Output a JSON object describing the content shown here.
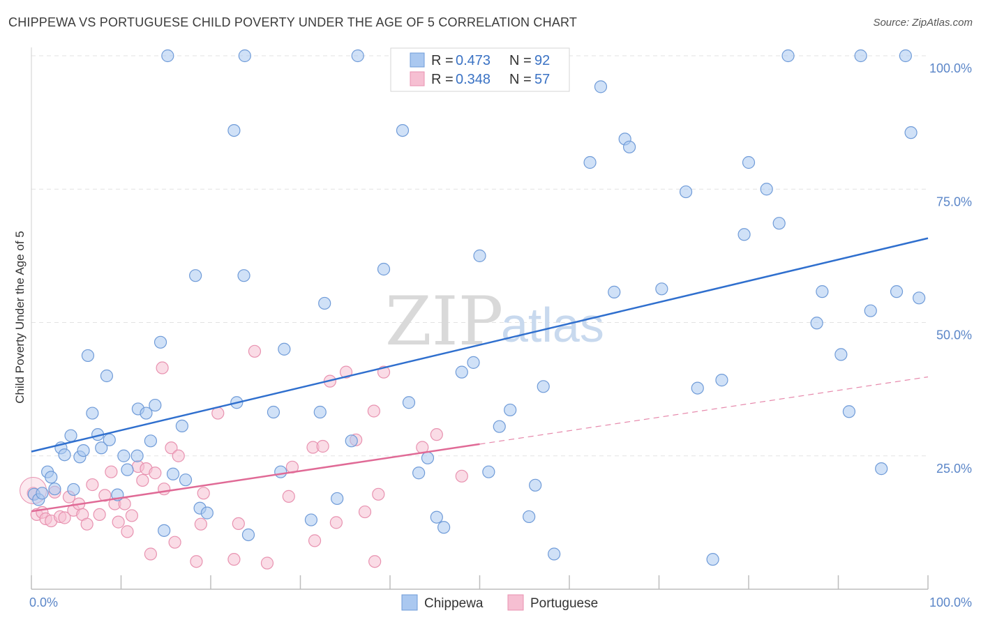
{
  "title": "CHIPPEWA VS PORTUGUESE CHILD POVERTY UNDER THE AGE OF 5 CORRELATION CHART",
  "source": "Source: ZipAtlas.com",
  "watermark": {
    "zip": "ZIP",
    "atlas": "atlas"
  },
  "colors": {
    "chippewa_fill": "#aac8f0",
    "chippewa_stroke": "#6f9bd8",
    "chippewa_line": "#2f6fce",
    "portuguese_fill": "#f6bfd2",
    "portuguese_stroke": "#e892b0",
    "portuguese_line": "#e06a96",
    "grid": "#e2e2e2",
    "tick_text": "#5b86c8"
  },
  "legend": {
    "rows": [
      {
        "r_label": "R =",
        "r_value": "0.473",
        "n_label": "N =",
        "n_value": "92"
      },
      {
        "r_label": "R =",
        "r_value": "0.348",
        "n_label": "N =",
        "n_value": "57"
      }
    ]
  },
  "chart_data": {
    "type": "scatter",
    "title": "CHIPPEWA VS PORTUGUESE CHILD POVERTY UNDER THE AGE OF 5 CORRELATION CHART",
    "xlabel": "",
    "ylabel": "Child Poverty Under the Age of 5",
    "xlim": [
      0,
      100
    ],
    "ylim": [
      0,
      100
    ],
    "x_tick_labels": [
      "0.0%",
      "100.0%"
    ],
    "y_ticks": [
      25,
      50,
      75,
      100
    ],
    "y_tick_labels": [
      "25.0%",
      "50.0%",
      "75.0%",
      "100.0%"
    ],
    "grid": true,
    "legend_position": "top-center",
    "bottom_legend": [
      "Chippewa",
      "Portuguese"
    ],
    "series": [
      {
        "name": "Chippewa",
        "R": 0.473,
        "N": 92,
        "trend": {
          "x": [
            0,
            100
          ],
          "y": [
            25.8,
            65.8
          ]
        },
        "points": [
          [
            0.3,
            17.8
          ],
          [
            0.8,
            16.8
          ],
          [
            1.2,
            18.0
          ],
          [
            1.8,
            22.0
          ],
          [
            2.2,
            21.0
          ],
          [
            2.6,
            18.8
          ],
          [
            3.3,
            26.5
          ],
          [
            3.7,
            25.2
          ],
          [
            4.4,
            28.8
          ],
          [
            4.7,
            18.7
          ],
          [
            5.4,
            24.8
          ],
          [
            5.8,
            26.0
          ],
          [
            6.3,
            43.8
          ],
          [
            6.8,
            33.0
          ],
          [
            7.4,
            29.0
          ],
          [
            7.8,
            26.5
          ],
          [
            8.4,
            40.0
          ],
          [
            8.7,
            28.0
          ],
          [
            9.6,
            17.7
          ],
          [
            10.3,
            25.0
          ],
          [
            10.7,
            22.4
          ],
          [
            11.8,
            25.0
          ],
          [
            11.9,
            33.8
          ],
          [
            12.8,
            33.0
          ],
          [
            13.3,
            27.8
          ],
          [
            13.8,
            34.5
          ],
          [
            14.4,
            46.3
          ],
          [
            14.8,
            11.0
          ],
          [
            15.2,
            100.0
          ],
          [
            15.8,
            21.6
          ],
          [
            16.8,
            30.6
          ],
          [
            17.2,
            20.5
          ],
          [
            18.3,
            58.8
          ],
          [
            18.8,
            15.2
          ],
          [
            19.6,
            14.3
          ],
          [
            22.6,
            86.0
          ],
          [
            22.9,
            35.0
          ],
          [
            23.7,
            58.8
          ],
          [
            23.8,
            100.0
          ],
          [
            24.2,
            10.2
          ],
          [
            27.0,
            33.2
          ],
          [
            27.8,
            22.0
          ],
          [
            28.2,
            45.0
          ],
          [
            31.2,
            13.0
          ],
          [
            32.2,
            33.2
          ],
          [
            32.7,
            53.6
          ],
          [
            34.1,
            17.0
          ],
          [
            35.7,
            27.8
          ],
          [
            36.4,
            100.0
          ],
          [
            39.3,
            60.0
          ],
          [
            41.4,
            86.0
          ],
          [
            42.1,
            35.0
          ],
          [
            43.2,
            21.8
          ],
          [
            44.2,
            24.6
          ],
          [
            45.2,
            13.5
          ],
          [
            46.0,
            11.6
          ],
          [
            48.0,
            40.7
          ],
          [
            49.3,
            42.5
          ],
          [
            50.0,
            62.5
          ],
          [
            51.0,
            22.0
          ],
          [
            52.2,
            30.5
          ],
          [
            53.4,
            33.6
          ],
          [
            55.5,
            13.6
          ],
          [
            56.2,
            19.5
          ],
          [
            57.1,
            38.0
          ],
          [
            58.3,
            6.6
          ],
          [
            62.3,
            80.0
          ],
          [
            63.5,
            94.2
          ],
          [
            65.0,
            55.7
          ],
          [
            66.2,
            84.4
          ],
          [
            66.7,
            82.9
          ],
          [
            70.3,
            56.3
          ],
          [
            73.0,
            74.5
          ],
          [
            74.3,
            37.7
          ],
          [
            76.0,
            5.6
          ],
          [
            77.0,
            39.2
          ],
          [
            79.5,
            66.5
          ],
          [
            80.0,
            80.0
          ],
          [
            82.0,
            75.0
          ],
          [
            83.4,
            68.6
          ],
          [
            84.4,
            100.0
          ],
          [
            87.6,
            49.9
          ],
          [
            88.2,
            55.8
          ],
          [
            90.3,
            44.0
          ],
          [
            91.2,
            33.3
          ],
          [
            92.5,
            100.0
          ],
          [
            93.6,
            52.2
          ],
          [
            94.8,
            22.6
          ],
          [
            96.5,
            55.8
          ],
          [
            97.5,
            100.0
          ],
          [
            98.1,
            85.6
          ],
          [
            99.0,
            54.6
          ]
        ]
      },
      {
        "name": "Portuguese",
        "R": 0.348,
        "N": 57,
        "trend": {
          "x": [
            0,
            50
          ],
          "y": [
            14.6,
            27.2
          ]
        },
        "trend_dashed_extension": {
          "x": [
            50,
            100
          ],
          "y": [
            27.2,
            39.8
          ]
        },
        "points": [
          [
            0.2,
            18.0
          ],
          [
            0.6,
            14.0
          ],
          [
            1.2,
            14.4
          ],
          [
            1.6,
            13.2
          ],
          [
            2.2,
            12.8
          ],
          [
            2.6,
            18.2
          ],
          [
            3.2,
            13.6
          ],
          [
            3.7,
            13.4
          ],
          [
            4.2,
            17.3
          ],
          [
            4.7,
            14.8
          ],
          [
            5.3,
            16.0
          ],
          [
            5.7,
            14.0
          ],
          [
            6.2,
            12.2
          ],
          [
            6.8,
            19.6
          ],
          [
            7.6,
            14.0
          ],
          [
            8.2,
            17.6
          ],
          [
            8.9,
            22.0
          ],
          [
            9.3,
            16.0
          ],
          [
            9.7,
            12.6
          ],
          [
            10.4,
            16.0
          ],
          [
            10.7,
            10.8
          ],
          [
            11.2,
            13.8
          ],
          [
            11.9,
            23.0
          ],
          [
            12.4,
            20.4
          ],
          [
            12.8,
            22.6
          ],
          [
            13.3,
            6.6
          ],
          [
            13.8,
            21.8
          ],
          [
            14.6,
            41.5
          ],
          [
            14.8,
            18.8
          ],
          [
            15.6,
            26.5
          ],
          [
            16.0,
            8.8
          ],
          [
            16.4,
            25.0
          ],
          [
            18.4,
            5.2
          ],
          [
            18.9,
            12.2
          ],
          [
            19.2,
            18.0
          ],
          [
            20.8,
            33.0
          ],
          [
            22.6,
            5.6
          ],
          [
            23.1,
            12.3
          ],
          [
            24.9,
            44.6
          ],
          [
            26.3,
            4.9
          ],
          [
            28.7,
            17.4
          ],
          [
            29.1,
            22.9
          ],
          [
            31.4,
            26.6
          ],
          [
            31.6,
            9.1
          ],
          [
            32.5,
            26.8
          ],
          [
            33.3,
            39.0
          ],
          [
            34.0,
            12.5
          ],
          [
            35.1,
            40.7
          ],
          [
            36.2,
            28.0
          ],
          [
            37.2,
            14.5
          ],
          [
            38.2,
            33.4
          ],
          [
            38.3,
            5.2
          ],
          [
            38.7,
            17.8
          ],
          [
            39.3,
            40.7
          ],
          [
            43.6,
            26.6
          ],
          [
            45.2,
            29.0
          ],
          [
            48.0,
            21.2
          ]
        ]
      }
    ]
  }
}
